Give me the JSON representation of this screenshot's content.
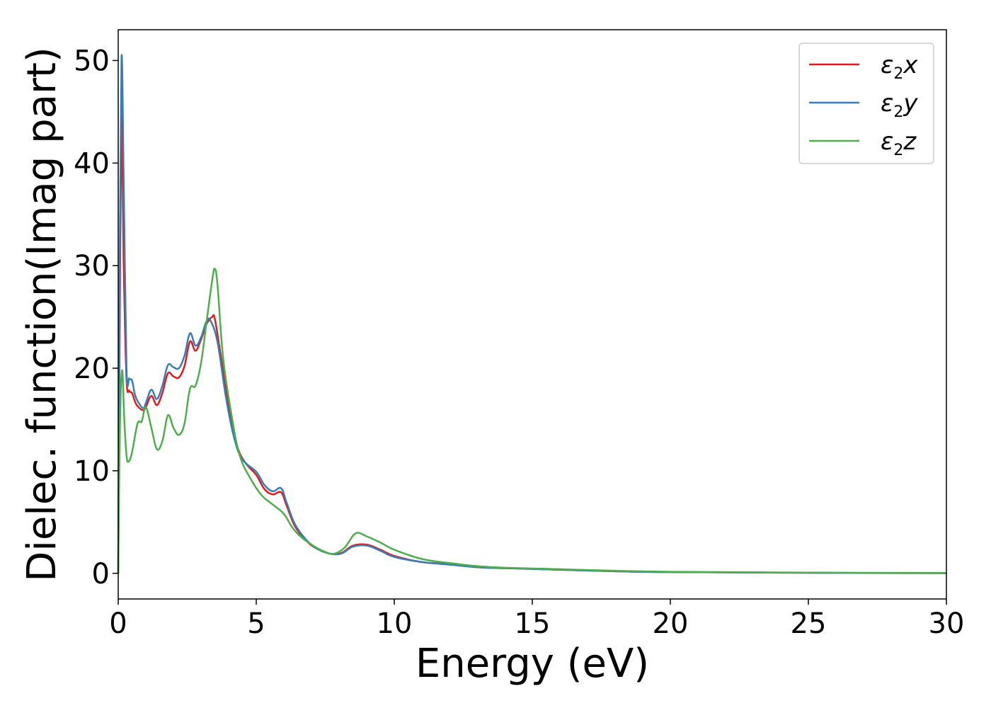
{
  "chart_data": {
    "type": "line",
    "title": "",
    "xlabel": "Energy (eV)",
    "ylabel": "Dielec. function(Imag part)",
    "xlim": [
      0,
      30
    ],
    "ylim": [
      -2.5,
      53
    ],
    "xticks": [
      0,
      5,
      10,
      15,
      20,
      25,
      30
    ],
    "yticks": [
      0,
      10,
      20,
      30,
      40,
      50
    ],
    "grid": false,
    "legend_position": "top-right",
    "series": [
      {
        "name": "ε2x",
        "legend_main": "ε",
        "legend_sub": "2",
        "legend_tail": "x",
        "color": "#e41a1c",
        "points": [
          [
            0,
            0
          ],
          [
            0.05,
            22
          ],
          [
            0.12,
            45
          ],
          [
            0.2,
            30
          ],
          [
            0.3,
            19
          ],
          [
            0.4,
            17.8
          ],
          [
            0.5,
            17.6
          ],
          [
            0.6,
            16.8
          ],
          [
            0.7,
            16.3
          ],
          [
            0.9,
            15.9
          ],
          [
            1.0,
            16.2
          ],
          [
            1.2,
            17.3
          ],
          [
            1.4,
            16.4
          ],
          [
            1.6,
            17.6
          ],
          [
            1.8,
            19.5
          ],
          [
            2.0,
            19.2
          ],
          [
            2.2,
            19.1
          ],
          [
            2.4,
            20.2
          ],
          [
            2.6,
            22.6
          ],
          [
            2.8,
            21.7
          ],
          [
            3.0,
            22.8
          ],
          [
            3.2,
            24.3
          ],
          [
            3.4,
            25.0
          ],
          [
            3.5,
            24.8
          ],
          [
            3.7,
            21.5
          ],
          [
            4.0,
            16.5
          ],
          [
            4.3,
            12.5
          ],
          [
            4.6,
            10.8
          ],
          [
            5.0,
            9.6
          ],
          [
            5.3,
            8.2
          ],
          [
            5.6,
            7.7
          ],
          [
            5.9,
            7.9
          ],
          [
            6.1,
            6.6
          ],
          [
            6.4,
            4.6
          ],
          [
            6.8,
            3.2
          ],
          [
            7.2,
            2.4
          ],
          [
            7.7,
            1.9
          ],
          [
            8.1,
            2.0
          ],
          [
            8.5,
            2.7
          ],
          [
            9.0,
            2.8
          ],
          [
            9.5,
            2.3
          ],
          [
            10.0,
            1.7
          ],
          [
            11.0,
            1.1
          ],
          [
            12.0,
            0.9
          ],
          [
            13.0,
            0.6
          ],
          [
            14.0,
            0.5
          ],
          [
            16.0,
            0.35
          ],
          [
            18.0,
            0.2
          ],
          [
            20.0,
            0.12
          ],
          [
            25.0,
            0.05
          ],
          [
            30.0,
            0.02
          ]
        ]
      },
      {
        "name": "ε2y",
        "legend_main": "ε",
        "legend_sub": "2",
        "legend_tail": "y",
        "color": "#377eb8",
        "points": [
          [
            0,
            0
          ],
          [
            0.05,
            28
          ],
          [
            0.12,
            50.3
          ],
          [
            0.2,
            38
          ],
          [
            0.3,
            20
          ],
          [
            0.4,
            19.0
          ],
          [
            0.5,
            18.8
          ],
          [
            0.6,
            17.5
          ],
          [
            0.7,
            16.8
          ],
          [
            0.9,
            16.1
          ],
          [
            1.0,
            16.6
          ],
          [
            1.2,
            17.9
          ],
          [
            1.4,
            17.0
          ],
          [
            1.6,
            18.3
          ],
          [
            1.8,
            20.3
          ],
          [
            2.0,
            20.1
          ],
          [
            2.2,
            20.0
          ],
          [
            2.4,
            21.2
          ],
          [
            2.6,
            23.4
          ],
          [
            2.8,
            22.2
          ],
          [
            3.0,
            23.0
          ],
          [
            3.2,
            24.6
          ],
          [
            3.35,
            24.6
          ],
          [
            3.6,
            22.5
          ],
          [
            3.9,
            17.2
          ],
          [
            4.2,
            13.2
          ],
          [
            4.5,
            11.1
          ],
          [
            5.0,
            9.9
          ],
          [
            5.3,
            8.6
          ],
          [
            5.6,
            8.0
          ],
          [
            5.9,
            8.3
          ],
          [
            6.1,
            6.9
          ],
          [
            6.4,
            4.8
          ],
          [
            6.8,
            3.3
          ],
          [
            7.2,
            2.4
          ],
          [
            7.7,
            1.9
          ],
          [
            8.1,
            1.95
          ],
          [
            8.5,
            2.6
          ],
          [
            9.0,
            2.7
          ],
          [
            9.5,
            2.2
          ],
          [
            10.0,
            1.6
          ],
          [
            11.0,
            1.1
          ],
          [
            12.0,
            0.85
          ],
          [
            13.0,
            0.6
          ],
          [
            14.0,
            0.5
          ],
          [
            16.0,
            0.35
          ],
          [
            18.0,
            0.2
          ],
          [
            20.0,
            0.12
          ],
          [
            25.0,
            0.05
          ],
          [
            30.0,
            0.02
          ]
        ]
      },
      {
        "name": "ε2z",
        "legend_main": "ε",
        "legend_sub": "2",
        "legend_tail": "z",
        "color": "#4daf4a",
        "points": [
          [
            0,
            0
          ],
          [
            0.06,
            14
          ],
          [
            0.14,
            19.8
          ],
          [
            0.22,
            15
          ],
          [
            0.3,
            11.5
          ],
          [
            0.38,
            10.9
          ],
          [
            0.5,
            11.8
          ],
          [
            0.7,
            14.6
          ],
          [
            0.85,
            14.8
          ],
          [
            1.0,
            16.2
          ],
          [
            1.2,
            14.2
          ],
          [
            1.4,
            12.1
          ],
          [
            1.6,
            12.9
          ],
          [
            1.8,
            15.4
          ],
          [
            2.0,
            14.2
          ],
          [
            2.2,
            13.5
          ],
          [
            2.4,
            14.6
          ],
          [
            2.6,
            18.0
          ],
          [
            2.8,
            18.3
          ],
          [
            3.0,
            20.5
          ],
          [
            3.2,
            24.5
          ],
          [
            3.4,
            28.5
          ],
          [
            3.5,
            29.7
          ],
          [
            3.6,
            28.0
          ],
          [
            3.8,
            21.0
          ],
          [
            4.1,
            15.5
          ],
          [
            4.4,
            11.5
          ],
          [
            4.8,
            9.2
          ],
          [
            5.2,
            7.6
          ],
          [
            5.6,
            6.7
          ],
          [
            6.0,
            5.8
          ],
          [
            6.3,
            4.5
          ],
          [
            6.6,
            3.6
          ],
          [
            7.0,
            2.8
          ],
          [
            7.4,
            2.2
          ],
          [
            7.8,
            1.9
          ],
          [
            8.2,
            2.5
          ],
          [
            8.6,
            3.9
          ],
          [
            9.0,
            3.6
          ],
          [
            9.5,
            3.0
          ],
          [
            10.0,
            2.3
          ],
          [
            11.0,
            1.4
          ],
          [
            12.0,
            1.0
          ],
          [
            13.0,
            0.7
          ],
          [
            14.0,
            0.55
          ],
          [
            16.0,
            0.4
          ],
          [
            18.0,
            0.25
          ],
          [
            20.0,
            0.15
          ],
          [
            25.0,
            0.07
          ],
          [
            30.0,
            0.03
          ]
        ]
      }
    ]
  }
}
